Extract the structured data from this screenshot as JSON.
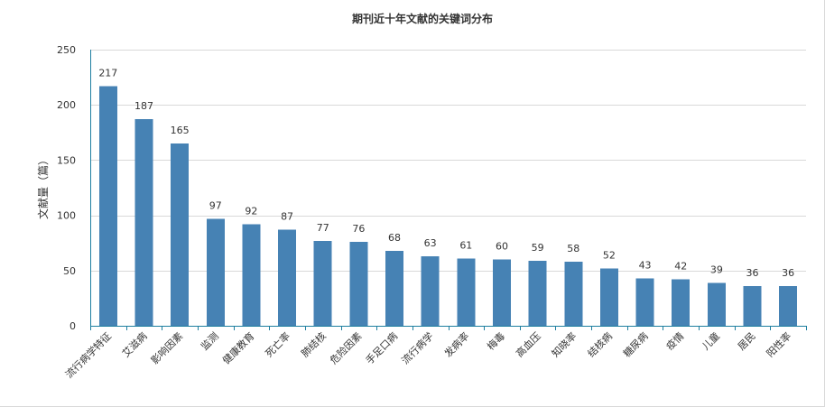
{
  "chart_data": {
    "type": "bar",
    "title": "期刊近十年文献的关键词分布",
    "xlabel": "",
    "ylabel": "文献量（篇）",
    "ylim": [
      0,
      250
    ],
    "yticks": [
      0,
      50,
      100,
      150,
      200,
      250
    ],
    "grid": true,
    "legend": "none",
    "bar_color": "#4682b4",
    "axis_color": "#1e7fa0",
    "grid_color": "#d9d9d9",
    "categories": [
      "流行病学特征",
      "艾滋病",
      "影响因素",
      "监测",
      "健康教育",
      "死亡率",
      "肺结核",
      "危险因素",
      "手足口病",
      "流行病学",
      "发病率",
      "梅毒",
      "高血压",
      "知晓率",
      "结核病",
      "糖尿病",
      "疫情",
      "儿童",
      "居民",
      "阳性率"
    ],
    "values": [
      217,
      187,
      165,
      97,
      92,
      87,
      77,
      76,
      68,
      63,
      61,
      60,
      59,
      58,
      52,
      43,
      42,
      39,
      36,
      36
    ]
  }
}
